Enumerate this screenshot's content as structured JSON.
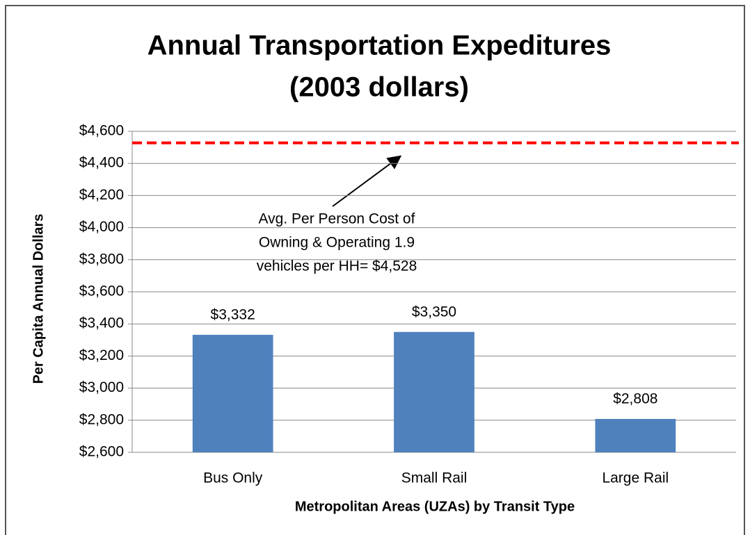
{
  "chart_data": {
    "type": "bar",
    "title": [
      "Annual Transportation Expeditures",
      "(2003 dollars)"
    ],
    "y_label": "Per Capita Annual Dollars",
    "x_label": "Metropolitan  Areas (UZAs) by Transit Type",
    "categories": [
      "Bus Only",
      "Small Rail",
      "Large Rail"
    ],
    "values": [
      3332,
      3350,
      2808
    ],
    "value_labels": [
      "$3,332",
      "$3,350",
      "$2,808"
    ],
    "color": "#4f81bd",
    "ylim": [
      2600,
      4600
    ],
    "yticks": [
      {
        "value": 2600,
        "label": "$2,600"
      },
      {
        "value": 2800,
        "label": "$2,800"
      },
      {
        "value": 3000,
        "label": "$3,000"
      },
      {
        "value": 3200,
        "label": "$3,200"
      },
      {
        "value": 3400,
        "label": "$3,400"
      },
      {
        "value": 3600,
        "label": "$3,600"
      },
      {
        "value": 3800,
        "label": "$3,800"
      },
      {
        "value": 4000,
        "label": "$4,000"
      },
      {
        "value": 4200,
        "label": "$4,200"
      },
      {
        "value": 4400,
        "label": "$4,400"
      },
      {
        "value": 4600,
        "label": "$4,600"
      }
    ],
    "grid": true,
    "reference_line": {
      "value": 4528,
      "color": "#ff0000"
    },
    "annotation": [
      "Avg. Per Person Cost of",
      "Owning & Operating 1.9",
      "vehicles per HH= $4,528"
    ]
  }
}
